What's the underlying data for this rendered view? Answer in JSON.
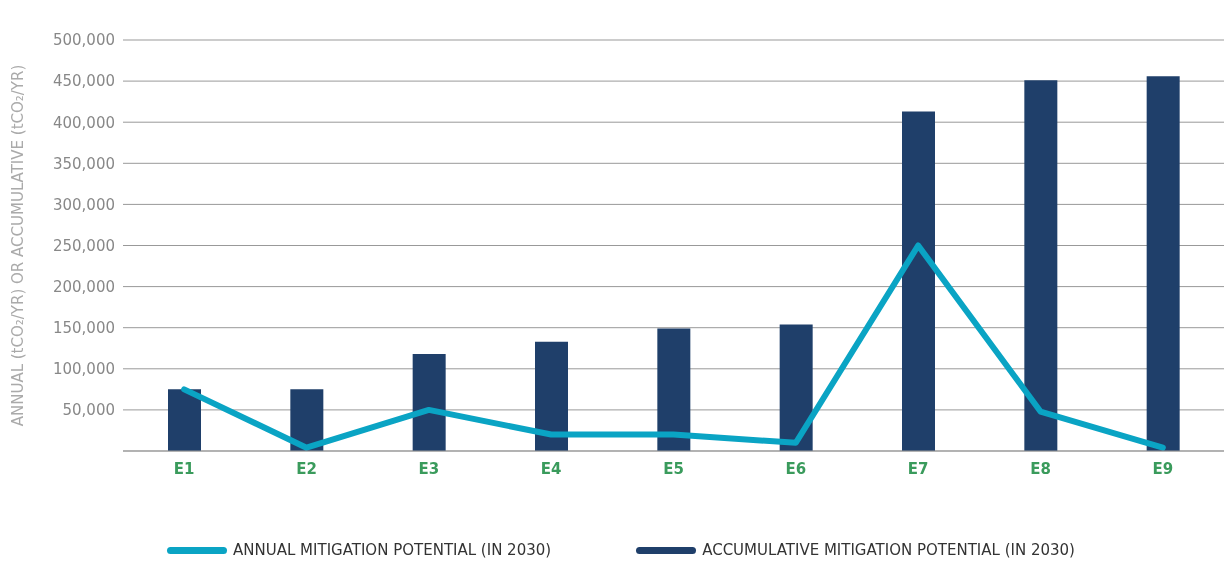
{
  "chart_data": {
    "type": "bar",
    "ylabel": "ANNUAL (tCO₂/YR) OR ACCUMULATIVE (tCO₂/YR)",
    "categories": [
      "E1",
      "E2",
      "E3",
      "E4",
      "E5",
      "E6",
      "E7",
      "E8",
      "E9"
    ],
    "series": [
      {
        "name": "ANNUAL MITIGATION POTENTIAL (IN 2030)",
        "type": "line",
        "color": "#0aa4c4",
        "values": [
          75000,
          4000,
          50000,
          20000,
          20000,
          10000,
          250000,
          48000,
          4000
        ]
      },
      {
        "name": "ACCUMULATIVE MITIGATION POTENTIAL (IN 2030)",
        "color": "#1f3f6a",
        "values": [
          75000,
          75000,
          118000,
          133000,
          149000,
          154000,
          413000,
          451000,
          456000
        ]
      }
    ],
    "ylim": [
      0,
      500000
    ],
    "yticks": [
      {
        "value": 50000,
        "label": "50,000"
      },
      {
        "value": 100000,
        "label": "100,000"
      },
      {
        "value": 150000,
        "label": "150,000"
      },
      {
        "value": 200000,
        "label": "200,000"
      },
      {
        "value": 250000,
        "label": "250,000"
      },
      {
        "value": 300000,
        "label": "300,000"
      },
      {
        "value": 350000,
        "label": "350,000"
      },
      {
        "value": 400000,
        "label": "400,000"
      },
      {
        "value": 450000,
        "label": "450,000"
      },
      {
        "value": 500000,
        "label": "500,000"
      }
    ],
    "grid": "y",
    "legend": "bottom",
    "marker": "none",
    "line_style": "solid"
  }
}
